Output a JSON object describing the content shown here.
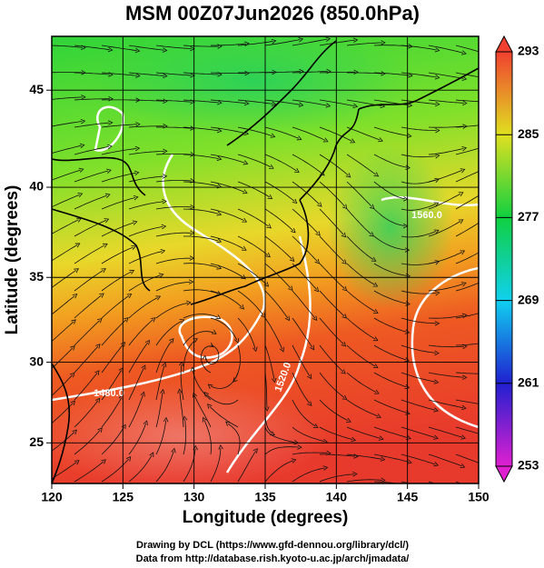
{
  "chart_data": {
    "type": "map",
    "title": "MSM 00Z07Jun2026 (850.0hPa)",
    "x_label": "Longitude (degrees)",
    "y_label": "Latitude  (degrees)",
    "xlim": [
      120,
      150
    ],
    "xticks": [
      120,
      125,
      130,
      135,
      140,
      145,
      150
    ],
    "ylim": [
      22.4,
      47.6
    ],
    "yticks": [
      25,
      30,
      35,
      40,
      45
    ],
    "grid": true,
    "colorbar": {
      "lim": [
        253,
        293
      ],
      "ticks": [
        253,
        261,
        269,
        277,
        285,
        293
      ]
    },
    "annotations": [
      "1480.0",
      "1520.0",
      "1560.0"
    ],
    "footer": [
      "Drawing by DCL (https://www.gfd-dennou.org/library/dcl/)",
      "Data from http://database.rish.kyoto-u.ac.jp/arch/jmadata/"
    ]
  }
}
